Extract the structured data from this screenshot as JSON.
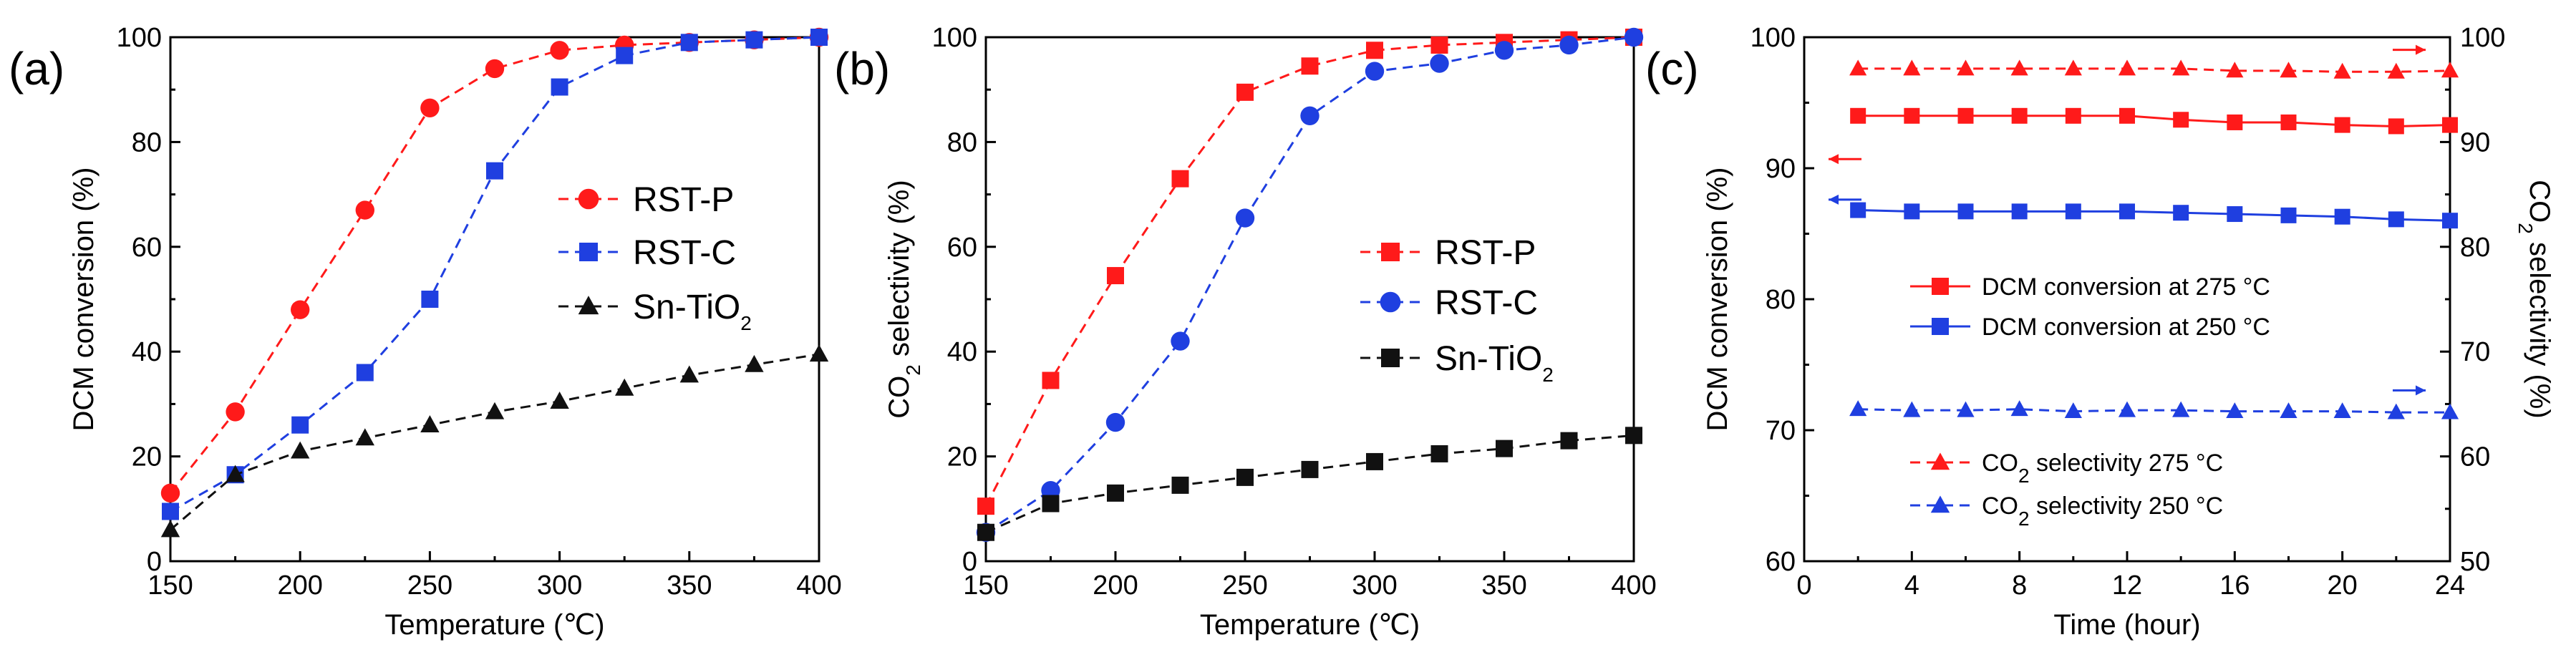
{
  "colors": {
    "red": "#FF1A1A",
    "blue": "#1F3FE0",
    "black": "#111111"
  },
  "chart_data": [
    {
      "panel": "(a)",
      "type": "line",
      "xlabel": "Temperature (℃)",
      "ylabel": "DCM conversion (%)",
      "xlim": [
        150,
        400
      ],
      "ylim": [
        0,
        100
      ],
      "xticks": [
        "150",
        "200",
        "250",
        "300",
        "350",
        "400"
      ],
      "yticks": [
        "0",
        "20",
        "40",
        "60",
        "80",
        "100"
      ],
      "x": [
        150,
        175,
        200,
        225,
        250,
        275,
        300,
        325,
        350,
        375,
        400
      ],
      "series": [
        {
          "name": "RST-P",
          "marker": "circle",
          "color": "#FF1A1A",
          "values": [
            13,
            28.5,
            48,
            67,
            86.5,
            94,
            97.5,
            98.5,
            99,
            99.5,
            100
          ]
        },
        {
          "name": "RST-C",
          "marker": "square",
          "color": "#1F3FE0",
          "values": [
            9.5,
            16.5,
            26,
            36,
            50,
            74.5,
            90.5,
            96.5,
            99,
            99.5,
            100
          ]
        },
        {
          "name": "Sn-TiO",
          "name_sub": "2",
          "marker": "triangle",
          "color": "#111111",
          "values": [
            6,
            16.5,
            21,
            23.5,
            26,
            28.5,
            30.5,
            33,
            35.5,
            37.5,
            39.5
          ]
        }
      ]
    },
    {
      "panel": "(b)",
      "type": "line",
      "xlabel": "Temperature (℃)",
      "ylabel": "CO",
      "ylabel_sub": "2",
      "ylabel_rest": " selectivity (%)",
      "xlim": [
        150,
        400
      ],
      "ylim": [
        0,
        100
      ],
      "xticks": [
        "150",
        "200",
        "250",
        "300",
        "350",
        "400"
      ],
      "yticks": [
        "0",
        "20",
        "40",
        "60",
        "80",
        "100"
      ],
      "x": [
        150,
        175,
        200,
        225,
        250,
        275,
        300,
        325,
        350,
        375,
        400
      ],
      "series": [
        {
          "name": "RST-P",
          "marker": "square",
          "color": "#FF1A1A",
          "values": [
            10.5,
            34.5,
            54.5,
            73,
            89.5,
            94.5,
            97.5,
            98.5,
            99,
            99.5,
            100
          ]
        },
        {
          "name": "RST-C",
          "marker": "circle",
          "color": "#1F3FE0",
          "values": [
            5.5,
            13.5,
            26.5,
            42,
            65.5,
            85,
            93.5,
            95,
            97.5,
            98.5,
            100
          ]
        },
        {
          "name": "Sn-TiO",
          "name_sub": "2",
          "marker": "square",
          "color": "#111111",
          "values": [
            5.5,
            11,
            13,
            14.5,
            16,
            17.5,
            19,
            20.5,
            21.5,
            23,
            24
          ]
        }
      ]
    },
    {
      "panel": "(c)",
      "type": "line",
      "xlabel": "Time (hour)",
      "ylabel": "DCM conversion (%)",
      "ylabel_right": "CO",
      "ylabel_right_sub": "2",
      "ylabel_right_rest": " selectivity (%)",
      "xlim": [
        0,
        24
      ],
      "ylim": [
        60,
        100
      ],
      "ylim_right": [
        50,
        100
      ],
      "xticks": [
        "0",
        "4",
        "8",
        "12",
        "16",
        "20",
        "24"
      ],
      "yticks": [
        "60",
        "70",
        "80",
        "90",
        "100"
      ],
      "yticks_right": [
        "50",
        "60",
        "70",
        "80",
        "90",
        "100"
      ],
      "x": [
        2,
        4,
        6,
        8,
        10,
        12,
        14,
        16,
        18,
        20,
        22,
        24
      ],
      "series": [
        {
          "name": "DCM conversion at 275 °C",
          "axis": "left",
          "marker": "square",
          "color": "#FF1A1A",
          "dash": false,
          "values": [
            94,
            94,
            94,
            94,
            94,
            94,
            93.7,
            93.5,
            93.5,
            93.3,
            93.2,
            93.3
          ]
        },
        {
          "name": "DCM conversion at 250 °C",
          "axis": "left",
          "marker": "square",
          "color": "#1F3FE0",
          "dash": false,
          "values": [
            86.8,
            86.7,
            86.7,
            86.7,
            86.7,
            86.7,
            86.6,
            86.5,
            86.4,
            86.3,
            86.1,
            86
          ]
        },
        {
          "name": "CO",
          "name_sub": "2",
          "name_rest": " selectivity 275 °C",
          "axis": "right",
          "marker": "triangle",
          "color": "#FF1A1A",
          "dash": true,
          "values": [
            97,
            97,
            97,
            97,
            97,
            97,
            97,
            96.8,
            96.8,
            96.7,
            96.7,
            96.8
          ]
        },
        {
          "name": "CO",
          "name_sub": "2",
          "name_rest": " selectivity 250 °C",
          "axis": "right",
          "marker": "triangle",
          "color": "#1F3FE0",
          "dash": true,
          "values": [
            64.5,
            64.4,
            64.4,
            64.5,
            64.3,
            64.4,
            64.4,
            64.3,
            64.3,
            64.3,
            64.2,
            64.2
          ]
        }
      ],
      "annotations": [
        "arrow-right-upper",
        "arrow-left-red",
        "arrow-left-blue",
        "arrow-right-lower"
      ]
    }
  ]
}
